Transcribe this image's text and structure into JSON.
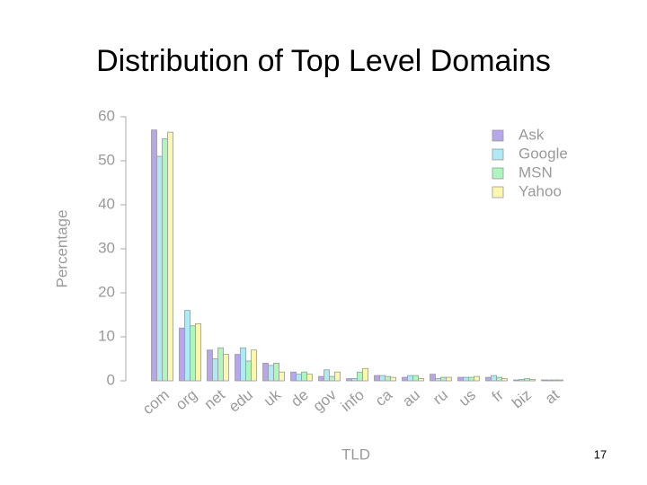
{
  "chart_data": {
    "type": "bar",
    "title": "Distribution of Top Level Domains",
    "x_label": "TLD",
    "y_label": "Percentage",
    "categories": [
      "com",
      "org",
      "net",
      "edu",
      "uk",
      "de",
      "gov",
      "info",
      "ca",
      "au",
      "ru",
      "us",
      "fr",
      "biz",
      "at"
    ],
    "series": [
      {
        "name": "Ask",
        "color": "#b7a6ea",
        "values": [
          57,
          12,
          7,
          6,
          4,
          2,
          1,
          0.5,
          1.2,
          0.8,
          1.5,
          0.8,
          0.8,
          0.2,
          0.2
        ]
      },
      {
        "name": "Google",
        "color": "#aee9f6",
        "values": [
          51,
          16,
          5,
          7.5,
          3.5,
          1.5,
          2.5,
          0.5,
          1.2,
          1.2,
          0.5,
          0.8,
          1.2,
          0.3,
          0.2
        ]
      },
      {
        "name": "MSN",
        "color": "#aef5be",
        "values": [
          55,
          12.5,
          7.5,
          4.5,
          4,
          2,
          1,
          2,
          1,
          1.2,
          0.8,
          0.8,
          0.8,
          0.5,
          0.2
        ]
      },
      {
        "name": "Yahoo",
        "color": "#fbf8ae",
        "values": [
          56.5,
          13,
          6,
          7,
          2,
          1.5,
          2,
          2.8,
          0.8,
          0.5,
          0.8,
          1,
          0.5,
          0.3,
          0.2
        ]
      }
    ],
    "ylim": [
      0,
      60
    ],
    "yticks": [
      0,
      10,
      20,
      30,
      40,
      50,
      60
    ],
    "legend": "top-right"
  },
  "page_number": "17"
}
